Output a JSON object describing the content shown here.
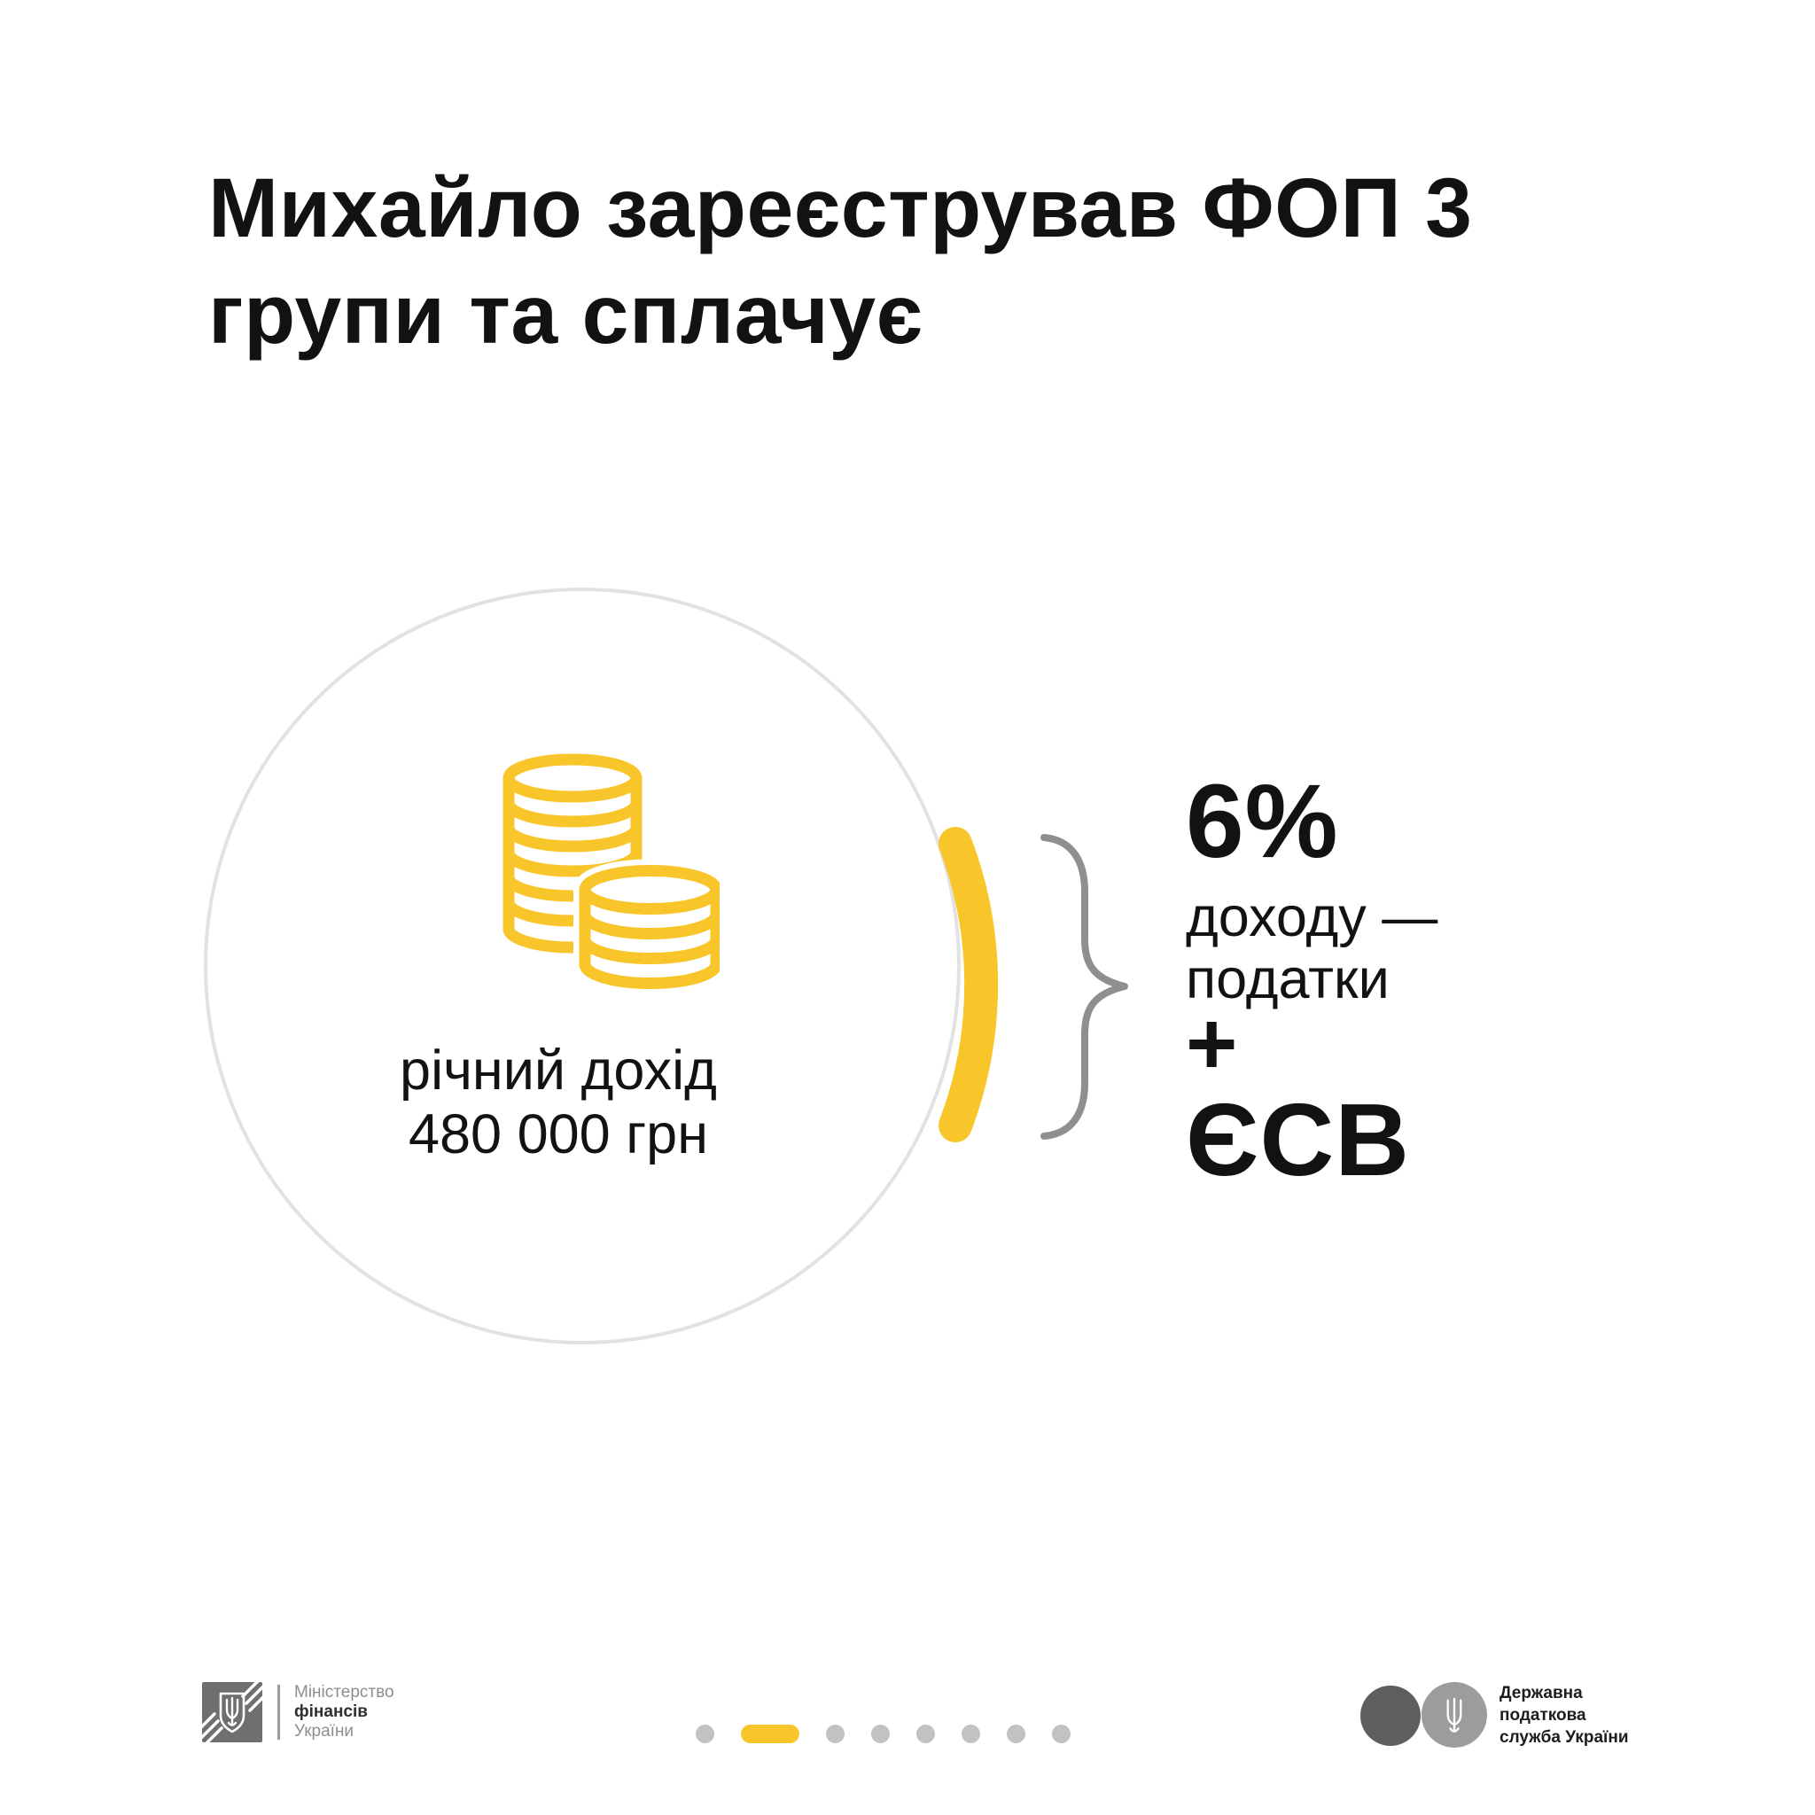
{
  "colors": {
    "yellow": "#F8C62A",
    "ink": "#121212",
    "circle_stroke": "#E2E2E2",
    "brace_gray": "#8F8F8F",
    "dot_gray": "#C2C2C2",
    "minfin_gray": "#6F6F6F",
    "minfin_text_gray": "#8E8E8E",
    "minfin_text_dark": "#2E2E2E",
    "divider_gray": "#9A9A9A",
    "tax_circle_dark": "#5E5E5E",
    "tax_circle_light": "#9C9C9C",
    "tax_text": "#1D1D1D"
  },
  "title": {
    "lines": [
      "Михайло зареєстрував ФОП 3",
      "групи та сплачує"
    ]
  },
  "income_circle": {
    "label_line1": "річний дохід",
    "label_line2": "480 000 грн",
    "icon": "coins-icon"
  },
  "result": {
    "percent": "6%",
    "detail_line1": "доходу —",
    "detail_line2": "податки",
    "plus": "+",
    "contribution": "ЄСВ"
  },
  "footer": {
    "minfin_logo": {
      "line1": "Міністерство",
      "line2": "фінансів",
      "line3": "України"
    },
    "tax_logo": {
      "line1": "Державна",
      "line2": "податкова",
      "line3": "служба України"
    },
    "pagination": {
      "count": 8,
      "active_index": 1
    }
  }
}
